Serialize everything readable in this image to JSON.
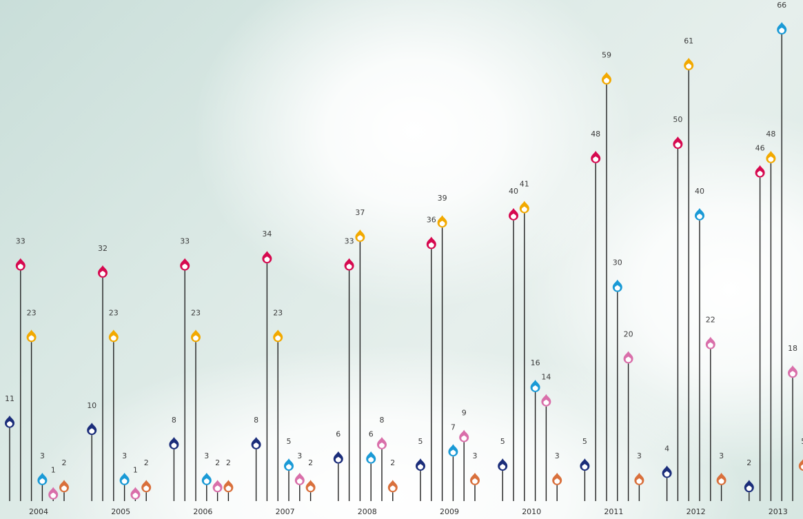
{
  "chart_data": {
    "type": "lollipop",
    "title": "",
    "xlabel": "",
    "ylabel": "",
    "ylim": [
      0,
      66
    ],
    "grid": false,
    "legend": "none",
    "categories": [
      "2004",
      "2005",
      "2006",
      "2007",
      "2008",
      "2009",
      "2010",
      "2011",
      "2012",
      "2013"
    ],
    "series": [
      {
        "color": "#1b2d7a",
        "values": [
          11,
          10,
          8,
          8,
          6,
          5,
          5,
          5,
          4,
          2
        ]
      },
      {
        "color": "#d6094f",
        "values": [
          33,
          32,
          33,
          34,
          33,
          36,
          40,
          48,
          50,
          46
        ]
      },
      {
        "color": "#f2a900",
        "values": [
          23,
          23,
          23,
          23,
          37,
          39,
          41,
          59,
          61,
          48
        ]
      },
      {
        "color": "#1a9ad6",
        "values": [
          3,
          3,
          3,
          5,
          6,
          7,
          16,
          30,
          40,
          66
        ]
      },
      {
        "color": "#d96faa",
        "values": [
          1,
          1,
          2,
          3,
          8,
          9,
          14,
          20,
          22,
          18
        ]
      },
      {
        "color": "#d9703c",
        "values": [
          2,
          2,
          2,
          2,
          2,
          3,
          3,
          3,
          3,
          5
        ]
      }
    ]
  }
}
